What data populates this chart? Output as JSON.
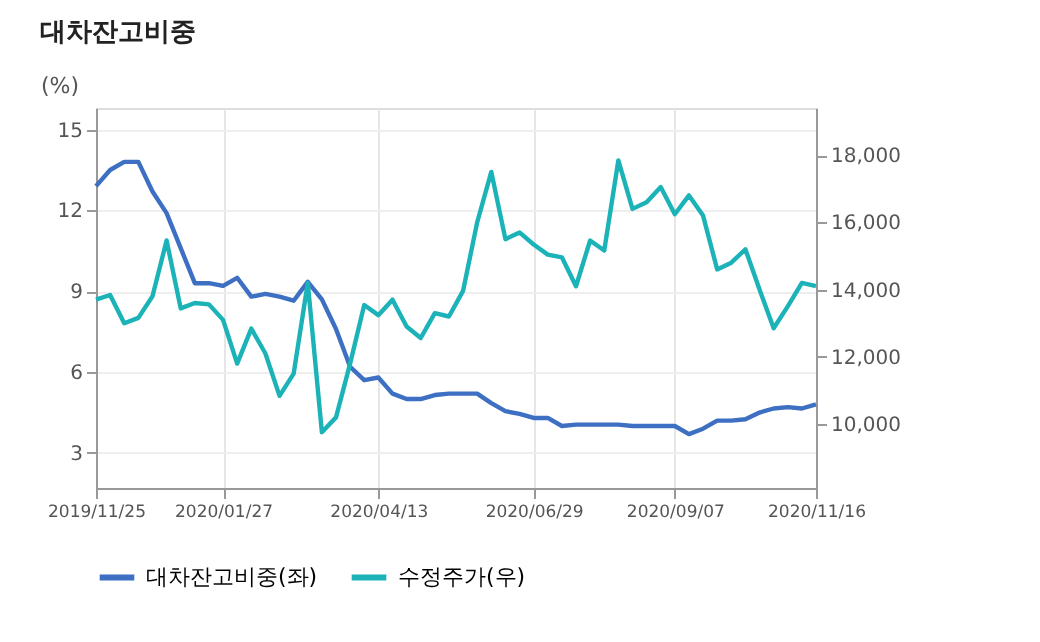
{
  "chart_data": {
    "type": "line",
    "title": "대차잔고비중",
    "ylabel": "(%)",
    "x": [
      "2019-11-25",
      "2019-12-02",
      "2019-12-09",
      "2019-12-16",
      "2019-12-23",
      "2019-12-30",
      "2020-01-06",
      "2020-01-13",
      "2020-01-20",
      "2020-01-27",
      "2020-02-03",
      "2020-02-10",
      "2020-02-17",
      "2020-02-24",
      "2020-03-02",
      "2020-03-09",
      "2020-03-16",
      "2020-03-23",
      "2020-03-30",
      "2020-04-06",
      "2020-04-13",
      "2020-04-20",
      "2020-04-27",
      "2020-05-04",
      "2020-05-11",
      "2020-05-18",
      "2020-05-25",
      "2020-06-01",
      "2020-06-08",
      "2020-06-15",
      "2020-06-22",
      "2020-06-29",
      "2020-07-06",
      "2020-07-13",
      "2020-07-20",
      "2020-07-27",
      "2020-08-03",
      "2020-08-10",
      "2020-08-17",
      "2020-08-24",
      "2020-08-31",
      "2020-09-07",
      "2020-09-14",
      "2020-09-21",
      "2020-09-28",
      "2020-10-05",
      "2020-10-12",
      "2020-10-19",
      "2020-10-26",
      "2020-11-02",
      "2020-11-09",
      "2020-11-16"
    ],
    "series": [
      {
        "name": "대차잔고비중(좌)",
        "color": "#3d6fc2",
        "values": [
          12.9,
          13.5,
          13.8,
          13.8,
          12.7,
          11.9,
          10.6,
          9.3,
          9.3,
          9.2,
          9.5,
          8.8,
          8.9,
          8.8,
          8.65,
          9.35,
          8.7,
          7.6,
          6.2,
          5.7,
          5.8,
          5.2,
          5.0,
          5.0,
          5.15,
          5.2,
          5.2,
          5.2,
          4.85,
          4.55,
          4.45,
          4.3,
          4.3,
          4.0,
          4.05,
          4.05,
          4.05,
          4.05,
          4.0,
          4.0,
          4.0,
          4.0,
          3.7,
          3.9,
          4.2,
          4.2,
          4.25,
          4.5,
          4.65,
          4.7,
          4.65,
          4.8
        ]
      },
      {
        "name": "수정주가(우)",
        "color": "#1cb3b8",
        "axis": "y2",
        "values": [
          13700,
          13840,
          13000,
          13160,
          13800,
          15460,
          13440,
          13600,
          13560,
          13100,
          11800,
          12840,
          12100,
          10840,
          11500,
          14200,
          9760,
          10200,
          11800,
          13540,
          13240,
          13700,
          12900,
          12560,
          13300,
          13200,
          13960,
          16000,
          17500,
          15500,
          15700,
          15340,
          15040,
          14960,
          14100,
          15460,
          15160,
          17840,
          16400,
          16600,
          17050,
          16240,
          16800,
          16200,
          14600,
          14800,
          15200,
          14000,
          12850,
          13500,
          14200,
          14100
        ]
      }
    ],
    "xlim": [
      "2019-11-25",
      "2020-11-16"
    ],
    "xticks": [
      {
        "value": "2019-11-25",
        "label": "2019/11/25"
      },
      {
        "value": "2020-01-27",
        "label": "2020/01/27"
      },
      {
        "value": "2020-04-13",
        "label": "2020/04/13"
      },
      {
        "value": "2020-06-29",
        "label": "2020/06/29"
      },
      {
        "value": "2020-09-07",
        "label": "2020/09/07"
      },
      {
        "value": "2020-11-16",
        "label": "2020/11/16"
      }
    ],
    "ylim": [
      1.7,
      15.8
    ],
    "yticks": [
      3,
      6,
      9,
      12,
      15
    ],
    "y2lim": [
      8100,
      19400
    ],
    "y2ticks": [
      {
        "value": 10000,
        "label": "10,000"
      },
      {
        "value": 12000,
        "label": "12,000"
      },
      {
        "value": 14000,
        "label": "14,000"
      },
      {
        "value": 16000,
        "label": "16,000"
      },
      {
        "value": 18000,
        "label": "18,000"
      }
    ],
    "grid": true,
    "legend": "bottom",
    "marker": "none",
    "line_style": "solid"
  }
}
